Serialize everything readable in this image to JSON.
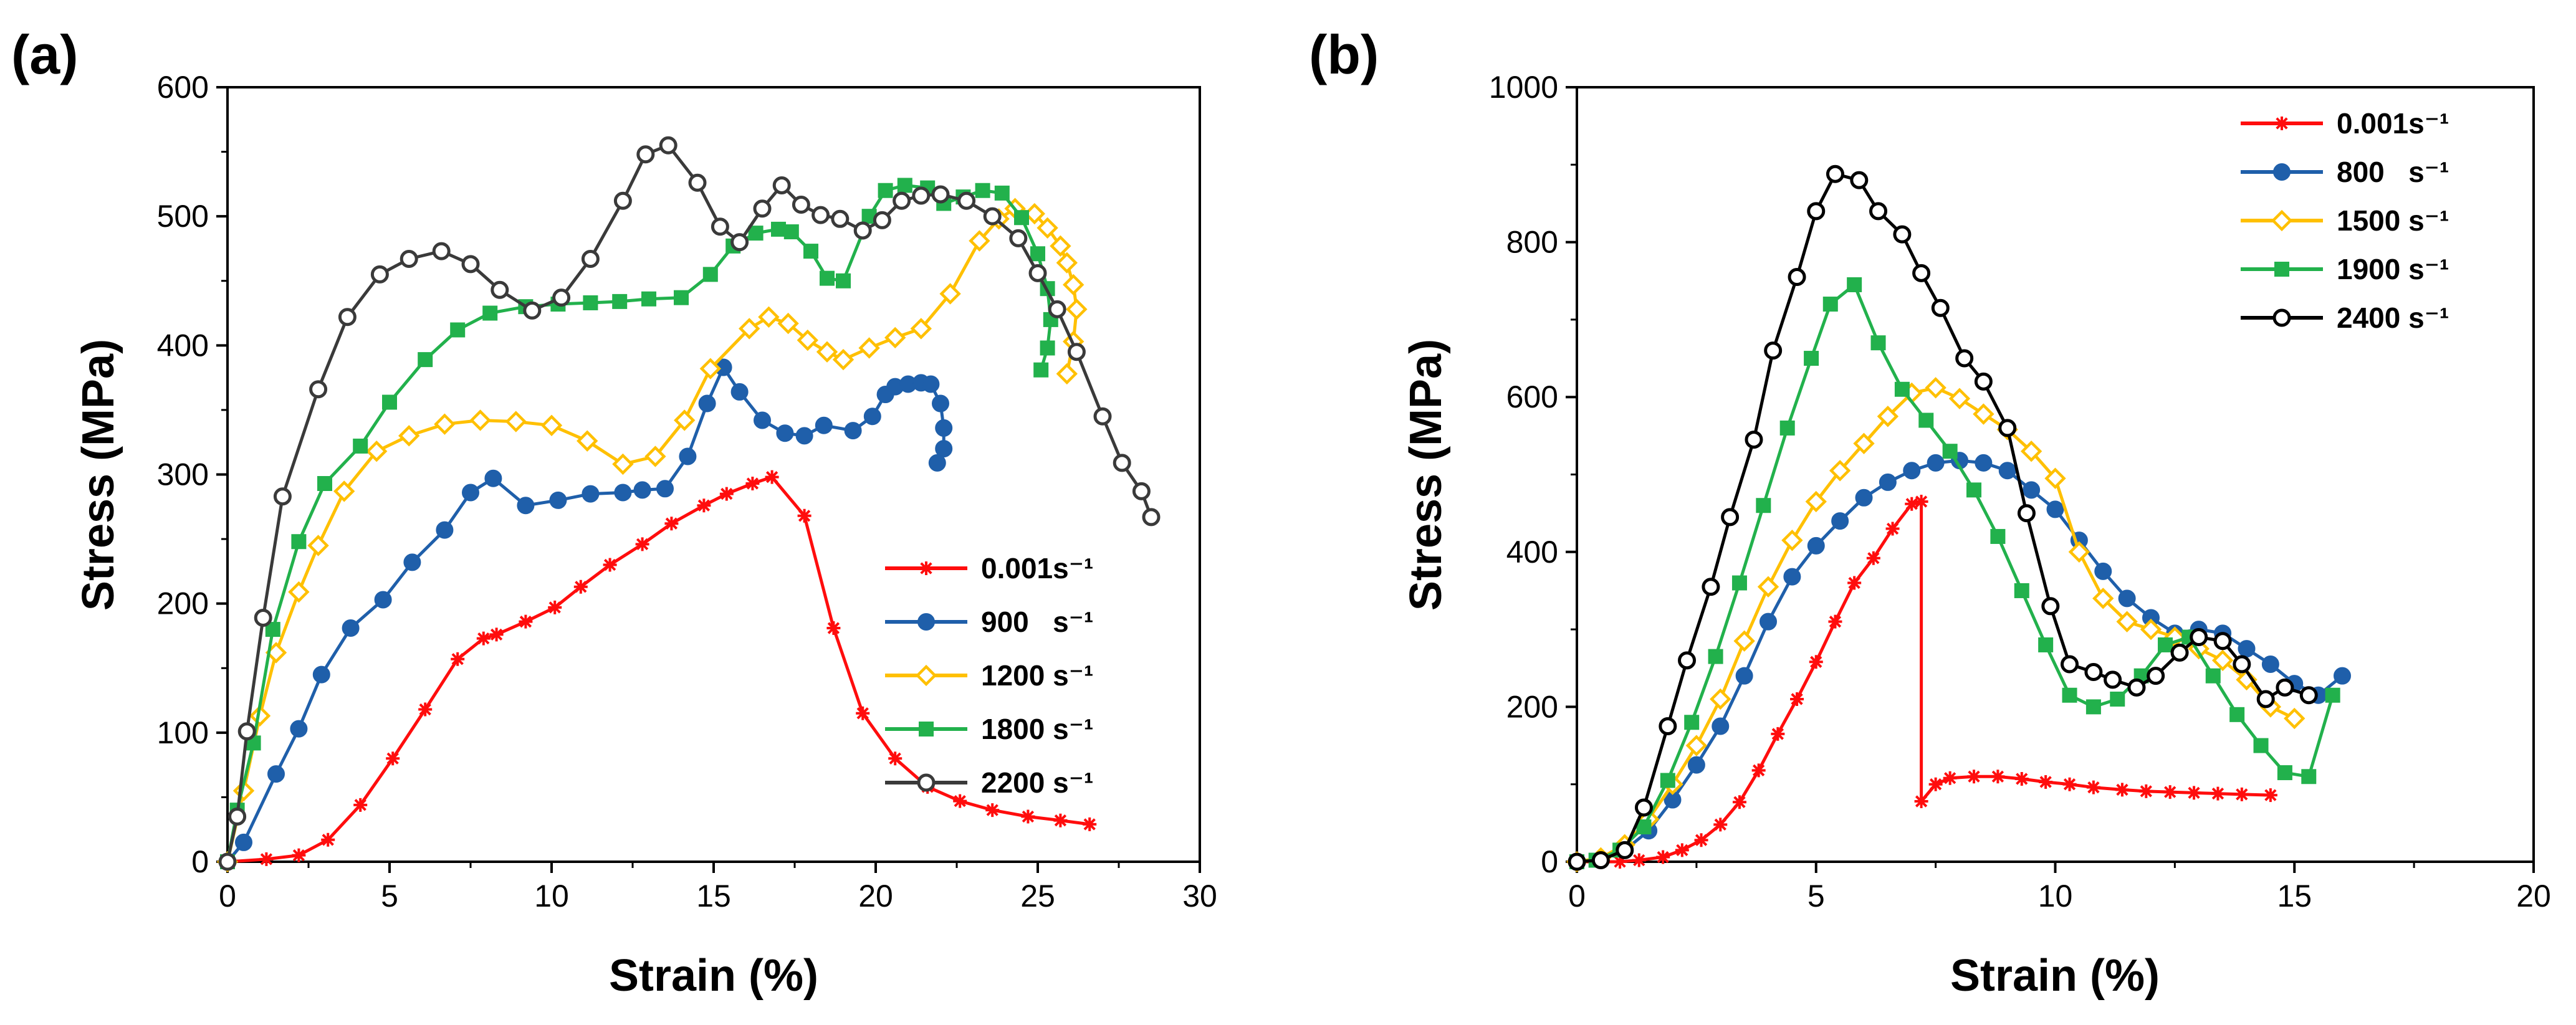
{
  "chart_data": [
    {
      "type": "line",
      "panel_label": "(a)",
      "xlabel": "Strain (%)",
      "ylabel": "Stress (MPa)",
      "xlim": [
        0,
        30
      ],
      "ylim": [
        0,
        600
      ],
      "xticks": [
        "0",
        "5",
        "10",
        "15",
        "20",
        "25",
        "30"
      ],
      "yticks": [
        "0",
        "100",
        "200",
        "300",
        "400",
        "500",
        "600"
      ],
      "legend_position": "bottom-right",
      "series": [
        {
          "name": "0.001s⁻¹",
          "color": "#ff0d0d",
          "marker": "star",
          "x": [
            0,
            1.2,
            2.2,
            3.1,
            4.1,
            5.1,
            6.1,
            7.1,
            7.9,
            8.3,
            9.2,
            10.1,
            10.9,
            11.8,
            12.8,
            13.7,
            14.7,
            15.4,
            16.2,
            16.8,
            17.8,
            18.7,
            19.6,
            20.6,
            21.6,
            22.6,
            23.6,
            24.7,
            25.7,
            26.6
          ],
          "y": [
            0,
            2,
            5,
            17,
            44,
            80,
            118,
            157,
            173,
            176,
            186,
            197,
            213,
            230,
            246,
            262,
            276,
            285,
            293,
            298,
            268,
            181,
            115,
            80,
            58,
            47,
            40,
            35,
            32,
            29
          ]
        },
        {
          "name": "900   s⁻¹",
          "color": "#1f5faa",
          "marker": "circle",
          "x": [
            0,
            0.5,
            1.5,
            2.2,
            2.9,
            3.8,
            4.8,
            5.7,
            6.7,
            7.5,
            8.2,
            9.2,
            10.2,
            11.2,
            12.2,
            12.8,
            13.5,
            14.2,
            14.8,
            15.3,
            15.8,
            16.5,
            17.2,
            17.8,
            18.4,
            19.3,
            19.9,
            20.3,
            20.6,
            21.0,
            21.4,
            21.7,
            22.0,
            22.1,
            22.1,
            21.9
          ],
          "y": [
            0,
            15,
            68,
            103,
            145,
            181,
            203,
            232,
            257,
            286,
            297,
            276,
            280,
            285,
            286,
            288,
            289,
            314,
            355,
            383,
            364,
            342,
            332,
            330,
            338,
            334,
            345,
            362,
            368,
            370,
            371,
            370,
            355,
            336,
            320,
            309
          ]
        },
        {
          "name": "1200 s⁻¹",
          "color": "#ffc000",
          "marker": "diamond",
          "x": [
            0,
            0.5,
            1.0,
            1.5,
            2.2,
            2.8,
            3.6,
            4.6,
            5.6,
            6.7,
            7.8,
            8.9,
            10.0,
            11.1,
            12.2,
            13.2,
            14.1,
            14.9,
            16.1,
            16.7,
            17.3,
            17.9,
            18.5,
            19.0,
            19.8,
            20.6,
            21.4,
            22.3,
            23.2,
            23.8,
            24.3,
            24.9,
            25.3,
            25.7,
            25.9,
            26.1,
            26.2,
            26.1,
            25.9
          ],
          "y": [
            0,
            55,
            113,
            162,
            209,
            245,
            287,
            318,
            330,
            339,
            342,
            341,
            338,
            326,
            308,
            314,
            342,
            382,
            413,
            422,
            417,
            404,
            395,
            389,
            398,
            406,
            413,
            440,
            481,
            498,
            506,
            502,
            491,
            477,
            464,
            447,
            428,
            403,
            378
          ]
        },
        {
          "name": "1800 s⁻¹",
          "color": "#22b14c",
          "marker": "square",
          "x": [
            0,
            0.3,
            0.8,
            1.4,
            2.2,
            3.0,
            4.1,
            5.0,
            6.1,
            7.1,
            8.1,
            9.2,
            10.2,
            11.2,
            12.1,
            13.0,
            14.0,
            14.9,
            15.6,
            16.3,
            17.0,
            17.4,
            18.0,
            18.5,
            19.0,
            19.8,
            20.3,
            20.9,
            21.6,
            22.1,
            22.7,
            23.3,
            23.9,
            24.5,
            25.0,
            25.3,
            25.4,
            25.3,
            25.1
          ],
          "y": [
            0,
            40,
            92,
            180,
            248,
            293,
            322,
            356,
            389,
            412,
            425,
            430,
            432,
            433,
            434,
            436,
            437,
            455,
            477,
            487,
            490,
            488,
            473,
            452,
            450,
            500,
            520,
            524,
            522,
            510,
            515,
            520,
            518,
            499,
            471,
            444,
            420,
            398,
            381
          ]
        },
        {
          "name": "2200 s⁻¹",
          "color": "#3a3a3a",
          "marker": "open-circle",
          "x": [
            0,
            0.3,
            0.6,
            1.1,
            1.7,
            2.8,
            3.7,
            4.7,
            5.6,
            6.6,
            7.5,
            8.4,
            9.4,
            10.3,
            11.2,
            12.2,
            12.9,
            13.6,
            14.5,
            15.2,
            15.8,
            16.5,
            17.1,
            17.7,
            18.3,
            18.9,
            19.6,
            20.2,
            20.8,
            21.4,
            22.0,
            22.8,
            23.6,
            24.4,
            25.0,
            25.6,
            26.2,
            27.0,
            27.6,
            28.2,
            28.5
          ],
          "y": [
            0,
            35,
            101,
            189,
            283,
            366,
            422,
            455,
            467,
            473,
            463,
            443,
            427,
            437,
            467,
            512,
            548,
            555,
            526,
            492,
            480,
            506,
            524,
            509,
            501,
            498,
            489,
            497,
            512,
            516,
            517,
            512,
            500,
            483,
            456,
            428,
            395,
            345,
            309,
            287,
            267
          ]
        }
      ]
    },
    {
      "type": "line",
      "panel_label": "(b)",
      "xlabel": "Strain (%)",
      "ylabel": "Stress (MPa)",
      "xlim": [
        0,
        20
      ],
      "ylim": [
        0,
        1000
      ],
      "xticks": [
        "0",
        "5",
        "10",
        "15",
        "20"
      ],
      "yticks": [
        "0",
        "200",
        "400",
        "600",
        "800",
        "1000"
      ],
      "legend_position": "top-right",
      "series": [
        {
          "name": "0.001s⁻¹",
          "color": "#ff0d0d",
          "marker": "star",
          "x": [
            0,
            0.9,
            1.3,
            1.8,
            2.2,
            2.6,
            3.0,
            3.4,
            3.8,
            4.2,
            4.6,
            5.0,
            5.4,
            5.8,
            6.2,
            6.6,
            7.0,
            7.2,
            7.2,
            7.5,
            7.8,
            8.3,
            8.8,
            9.3,
            9.8,
            10.3,
            10.8,
            11.4,
            11.9,
            12.4,
            12.9,
            13.4,
            13.9,
            14.5
          ],
          "y": [
            0,
            0,
            2,
            6,
            15,
            28,
            48,
            77,
            118,
            165,
            210,
            258,
            310,
            360,
            392,
            430,
            462,
            465,
            78,
            100,
            108,
            110,
            110,
            107,
            103,
            100,
            96,
            93,
            91,
            90,
            89,
            88,
            87,
            86
          ]
        },
        {
          "name": "800   s⁻¹",
          "color": "#1f5faa",
          "marker": "circle",
          "x": [
            0,
            0.5,
            1.0,
            1.5,
            2.0,
            2.5,
            3.0,
            3.5,
            4.0,
            4.5,
            5.0,
            5.5,
            6.0,
            6.5,
            7.0,
            7.5,
            8.0,
            8.5,
            9.0,
            9.5,
            10.0,
            10.5,
            11.0,
            11.5,
            12.0,
            12.5,
            13.0,
            13.5,
            14.0,
            14.5,
            15.0,
            15.5,
            16.0
          ],
          "y": [
            0,
            3,
            15,
            40,
            80,
            125,
            175,
            240,
            310,
            368,
            408,
            440,
            470,
            490,
            505,
            515,
            518,
            515,
            505,
            480,
            455,
            415,
            375,
            340,
            315,
            295,
            300,
            295,
            275,
            255,
            230,
            215,
            240
          ]
        },
        {
          "name": "1500 s⁻¹",
          "color": "#ffc000",
          "marker": "diamond",
          "x": [
            0,
            0.5,
            1.0,
            1.5,
            2.0,
            2.5,
            3.0,
            3.5,
            4.0,
            4.5,
            5.0,
            5.5,
            6.0,
            6.5,
            7.0,
            7.5,
            8.0,
            8.5,
            9.0,
            9.5,
            10.0,
            10.5,
            11.0,
            11.5,
            12.0,
            12.5,
            13.0,
            13.5,
            14.0,
            14.5,
            15.0
          ],
          "y": [
            0,
            5,
            22,
            55,
            100,
            150,
            210,
            285,
            355,
            415,
            465,
            505,
            540,
            575,
            605,
            612,
            598,
            578,
            558,
            530,
            495,
            400,
            340,
            310,
            300,
            290,
            275,
            260,
            235,
            200,
            185
          ]
        },
        {
          "name": "1900 s⁻¹",
          "color": "#22b14c",
          "marker": "square",
          "x": [
            0,
            0.4,
            0.9,
            1.4,
            1.9,
            2.4,
            2.9,
            3.4,
            3.9,
            4.4,
            4.9,
            5.3,
            5.8,
            6.3,
            6.8,
            7.3,
            7.8,
            8.3,
            8.8,
            9.3,
            9.8,
            10.3,
            10.8,
            11.3,
            11.8,
            12.3,
            12.8,
            13.3,
            13.8,
            14.3,
            14.8,
            15.3,
            15.8
          ],
          "y": [
            0,
            2,
            15,
            45,
            105,
            180,
            265,
            360,
            460,
            560,
            650,
            720,
            745,
            670,
            610,
            570,
            530,
            480,
            420,
            350,
            280,
            215,
            200,
            210,
            240,
            280,
            290,
            240,
            190,
            150,
            115,
            110,
            215
          ]
        },
        {
          "name": "2400 s⁻¹",
          "color": "#000000",
          "marker": "open-circle",
          "x": [
            0,
            0.5,
            1.0,
            1.4,
            1.9,
            2.3,
            2.8,
            3.2,
            3.7,
            4.1,
            4.6,
            5.0,
            5.4,
            5.9,
            6.3,
            6.8,
            7.2,
            7.6,
            8.1,
            8.5,
            9.0,
            9.4,
            9.9,
            10.3,
            10.8,
            11.2,
            11.7,
            12.1,
            12.6,
            13.0,
            13.5,
            13.9,
            14.4,
            14.8,
            15.3
          ],
          "y": [
            0,
            2,
            15,
            70,
            175,
            260,
            355,
            445,
            545,
            660,
            755,
            840,
            888,
            880,
            840,
            810,
            760,
            715,
            650,
            620,
            560,
            450,
            330,
            255,
            245,
            235,
            225,
            240,
            270,
            290,
            285,
            255,
            210,
            225,
            215
          ]
        }
      ]
    }
  ]
}
